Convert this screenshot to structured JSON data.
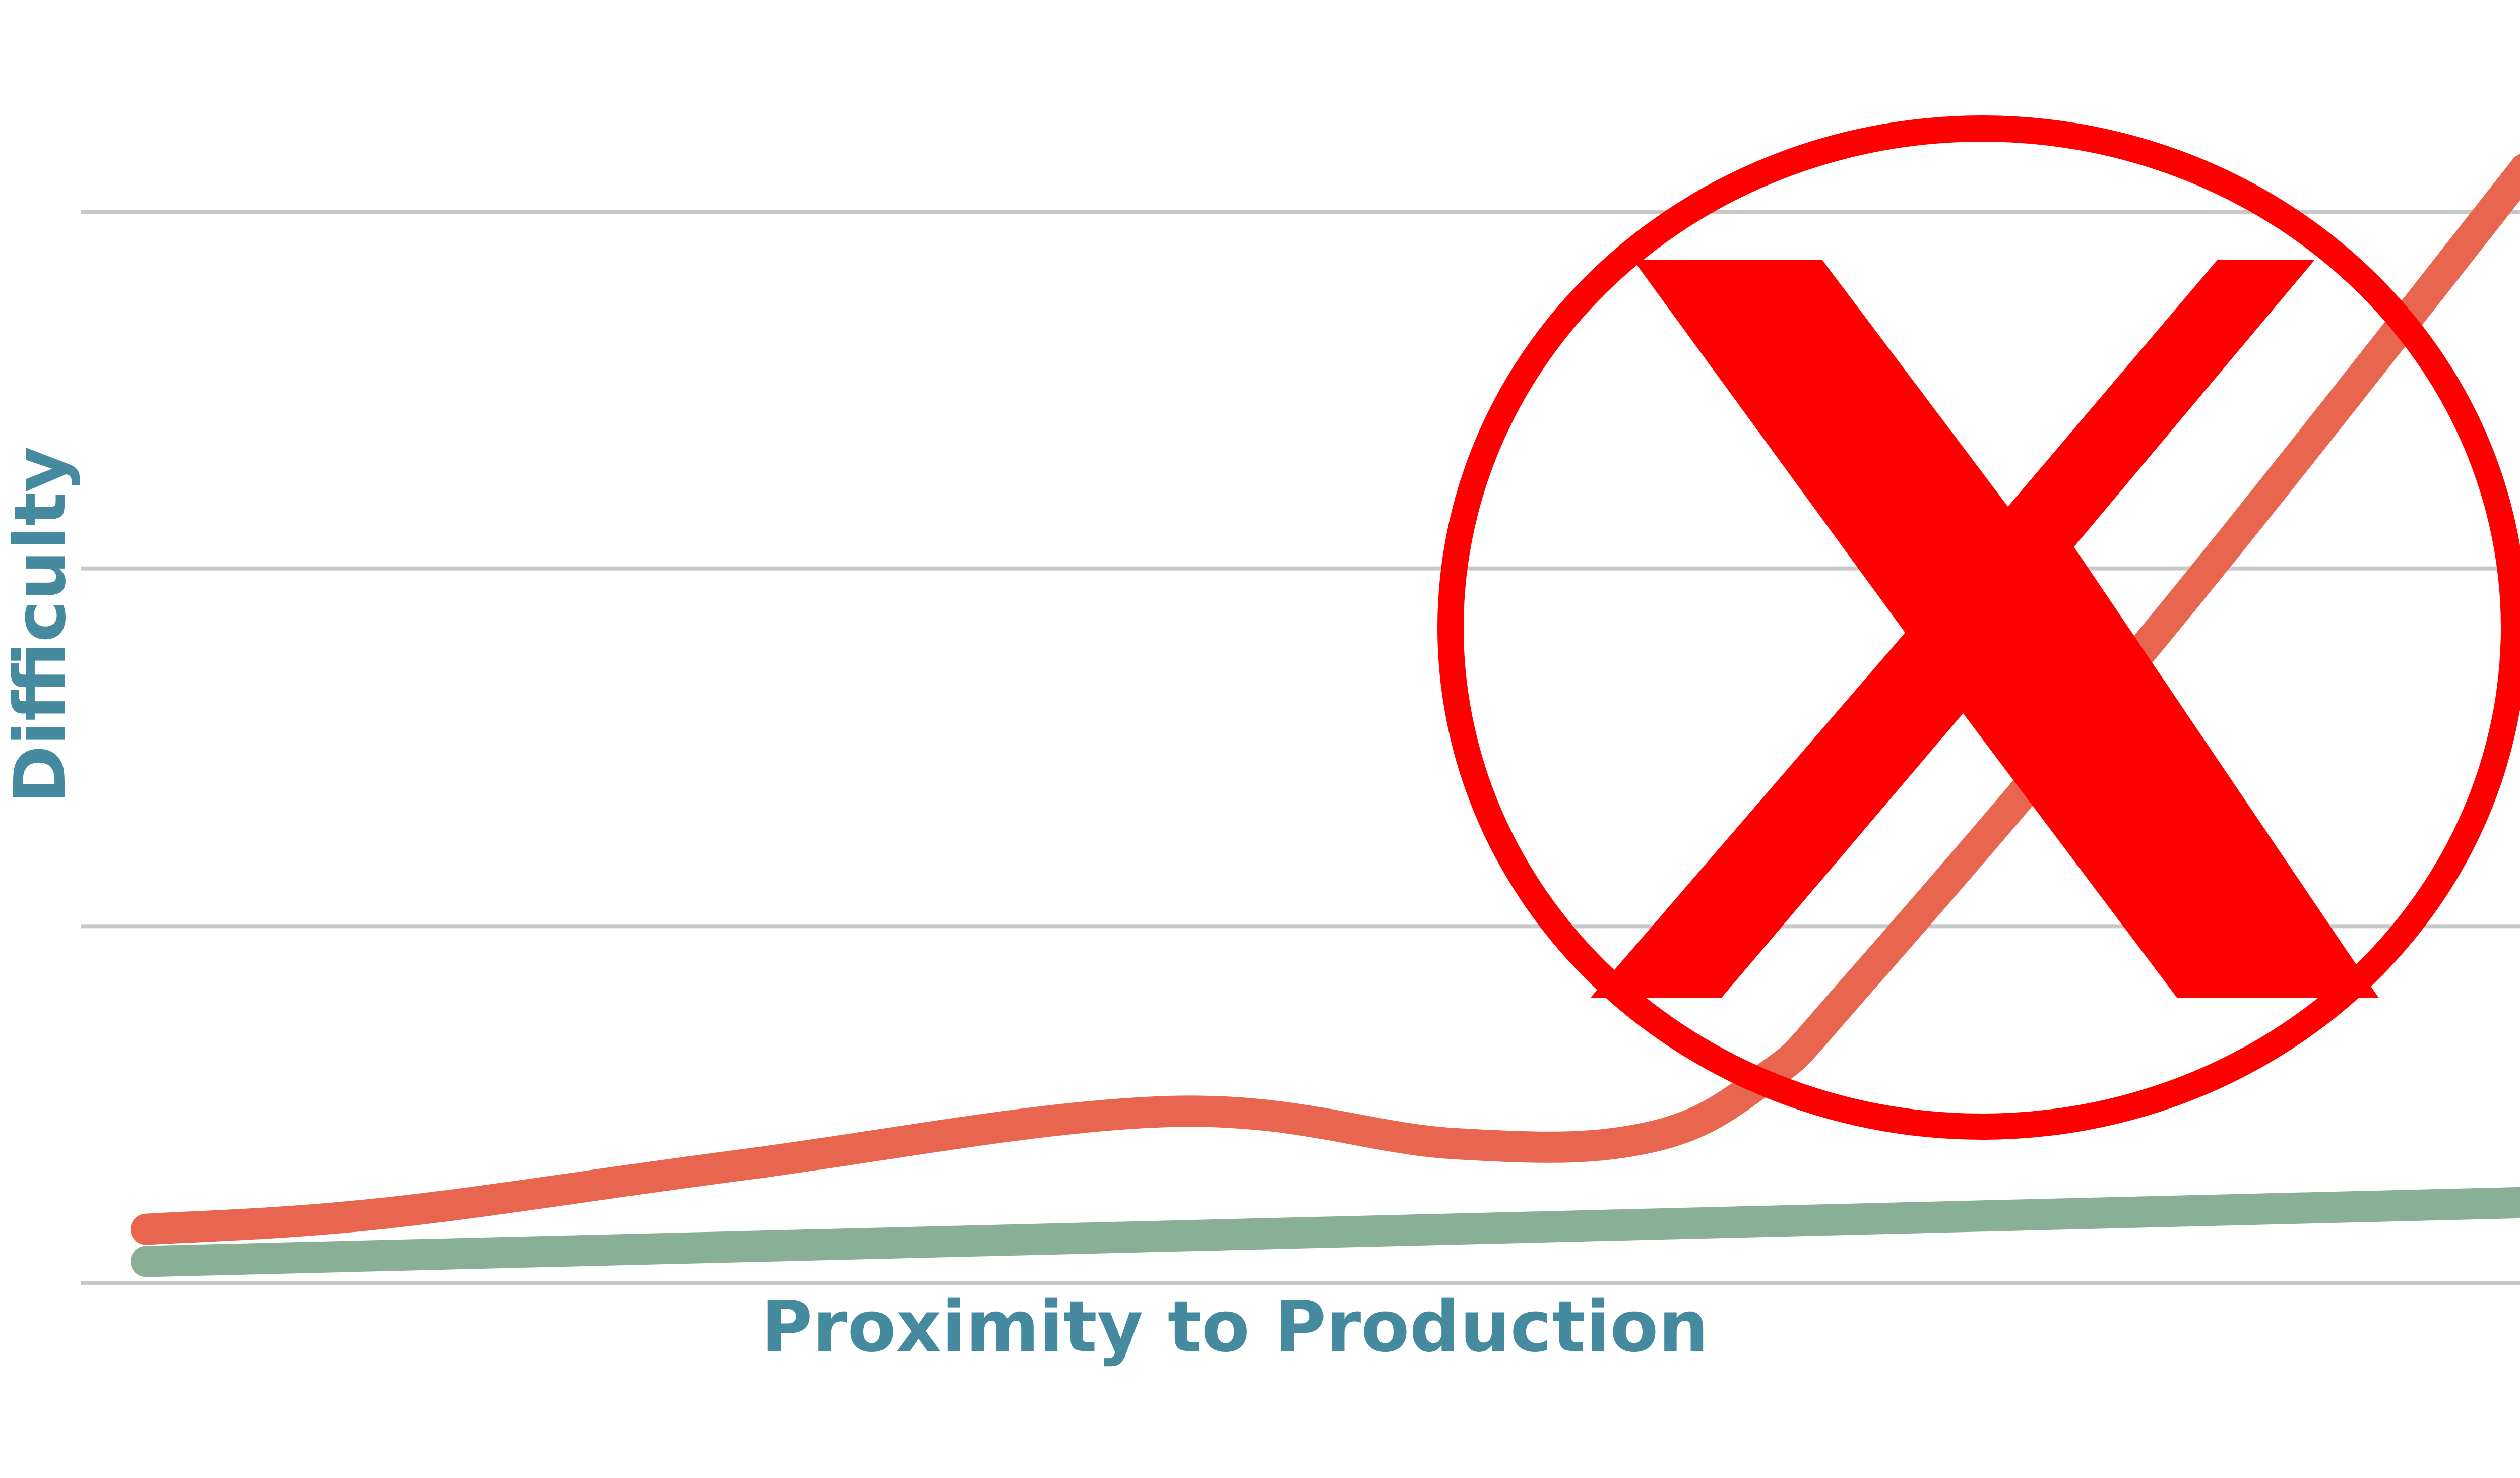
{
  "chart_data": {
    "type": "line",
    "title": "",
    "xlabel": "Proximity to Production",
    "ylabel": "Difficulty",
    "xlim": [
      0,
      100
    ],
    "ylim": [
      0,
      100
    ],
    "grid": true,
    "gridlines_y": [
      0,
      33.3,
      66.7,
      100
    ],
    "legend": "none",
    "series": [
      {
        "color": "#e86650",
        "x": [
          0,
          10,
          25,
          43,
          55,
          63,
          68,
          72,
          85,
          100
        ],
        "y": [
          5,
          6.5,
          11,
          16,
          13,
          13.5,
          19,
          28,
          62,
          104
        ]
      },
      {
        "color": "#8aaf97",
        "x": [
          0,
          100
        ],
        "y": [
          2,
          7.5
        ]
      }
    ],
    "annotation": {
      "type": "red-x-circle-icon",
      "color": "#ff0000"
    },
    "colors": {
      "label": "#458a9e",
      "grid": "#c8c8c8"
    }
  }
}
